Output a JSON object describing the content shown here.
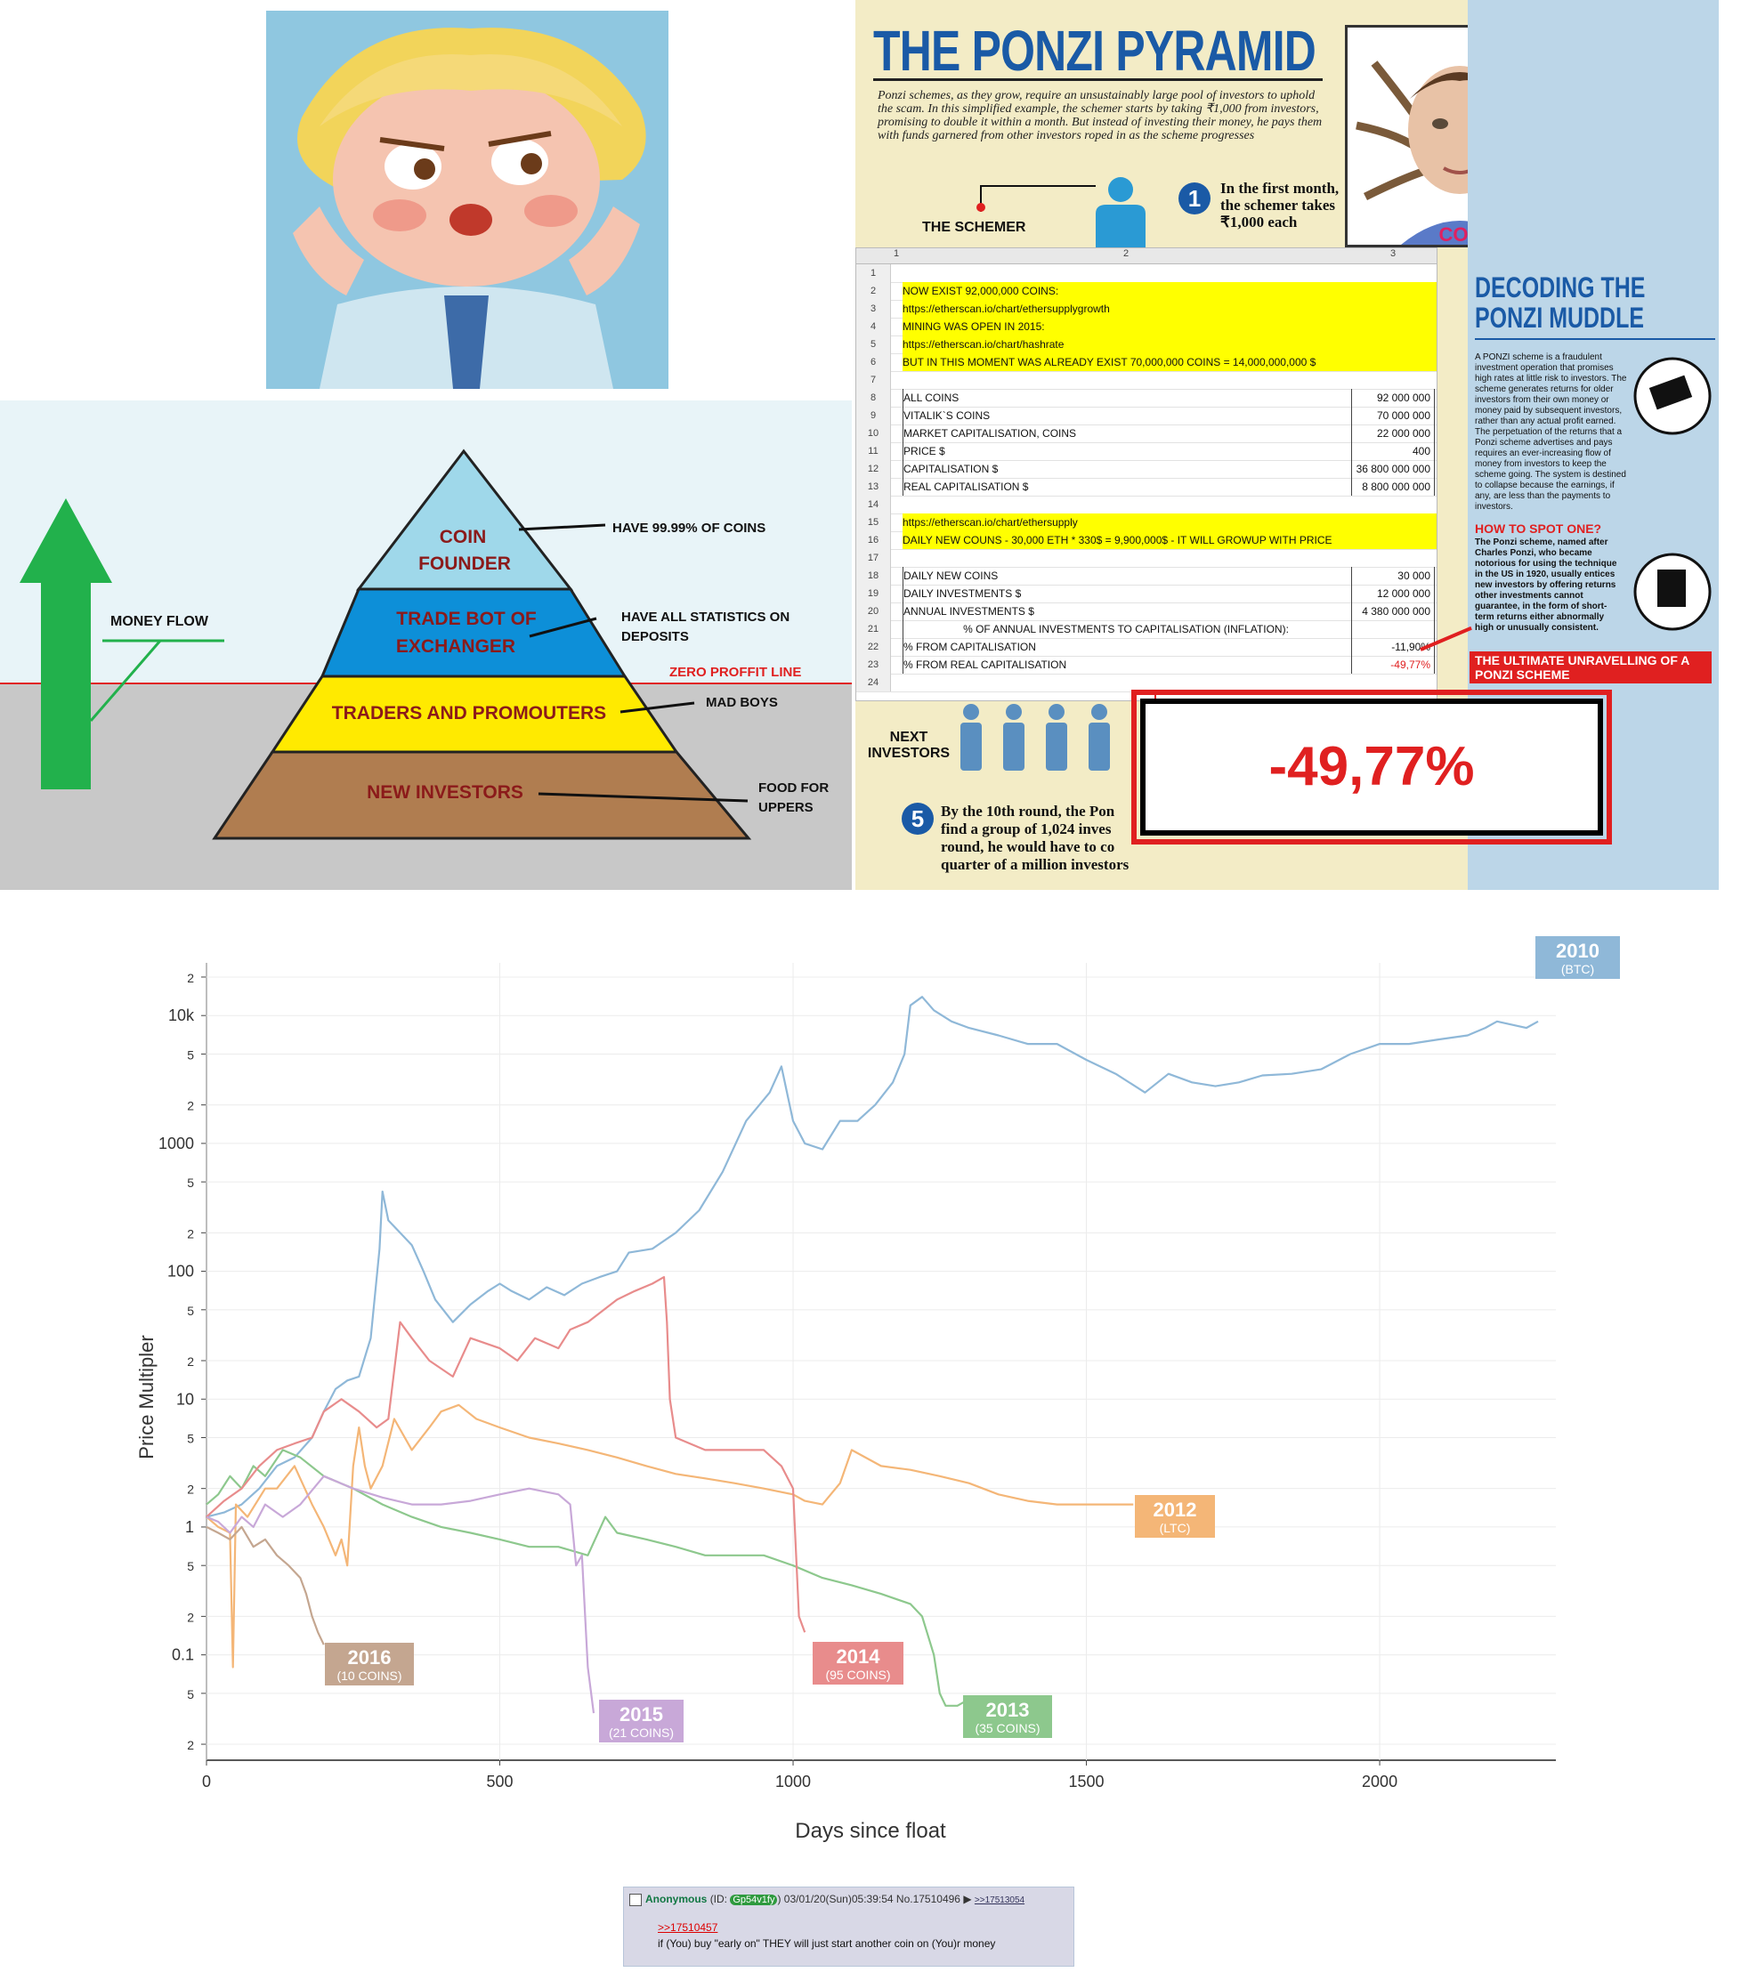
{
  "pyramid": {
    "money_flow": "MONEY FLOW",
    "layers": [
      "COIN FOUNDER",
      "TRADE BOT OF EXCHANGER",
      "TRADERS AND PROMOUTERS",
      "NEW INVESTORS"
    ],
    "notes": [
      "HAVE 99.99% OF COINS",
      "HAVE ALL STATISTICS ON DEPOSITS",
      "MAD BOYS",
      "FOOD FOR UPPERS"
    ],
    "zero_line": "ZERO PROFFIT LINE"
  },
  "infographic": {
    "title": "THE PONZI PYRAMID",
    "intro": "Ponzi schemes, as they grow, require an unsustainably large pool of investors to uphold the scam. In this simplified example, the schemer starts by taking ₹1,000 from investors, promising to double it within a month. But instead of investing their money, he pays them with funds garnered from other investors roped in as the scheme progresses",
    "schemer": "THE SCHEMER",
    "step1": "In the first month, the schemer takes ₹1,000 each",
    "next": "NEXT INVESTORS",
    "step5": "By the 10th round, the Pon find a group of 1,024 inves round, he would have to co quarter of a million investors",
    "side_title": "DECODING THE PONZI MUDDLE",
    "side_text": "A PONZI scheme is a fraudulent investment operation that promises high rates at little risk to investors. The scheme generates returns for older investors from their own money or money paid by subsequent investors, rather than any actual profit earned. The perpetuation of the returns that a Ponzi scheme advertises and pays requires an ever-increasing flow of money from investors to keep the scheme going. The system is destined to collapse because the earnings, if any, are less than the payments to investors.",
    "spot_title": "HOW TO SPOT ONE?",
    "spot_text": "The Ponzi scheme, named after Charles Ponzi, who became notorious for using the technique in the US in 1920, usually entices new investors by offering returns other investments cannot guarantee, in the form of short-term returns either abnormally high or unusually consistent.",
    "unravel_title": "THE ULTIMATE UNRAVELLING OF A PONZI SCHEME",
    "coin_label": "COIN",
    "sheet_cols": [
      "1",
      "2",
      "3"
    ],
    "sheet_rows": [
      {
        "n": "1",
        "t": "",
        "v": ""
      },
      {
        "n": "2",
        "t": "NOW EXIST 92,000,000 COINS:",
        "v": ""
      },
      {
        "n": "3",
        "t": "https://etherscan.io/chart/ethersupplygrowth",
        "v": ""
      },
      {
        "n": "4",
        "t": "MINING WAS OPEN IN 2015:",
        "v": ""
      },
      {
        "n": "5",
        "t": "https://etherscan.io/chart/hashrate",
        "v": ""
      },
      {
        "n": "6",
        "t": "BUT IN THIS MOMENT WAS ALREADY EXIST 70,000,000 COINS = 14,000,000,000 $",
        "v": ""
      },
      {
        "n": "7",
        "t": "",
        "v": ""
      },
      {
        "n": "8",
        "t": "ALL COINS",
        "v": "92 000 000"
      },
      {
        "n": "9",
        "t": "VITALIK`S COINS",
        "v": "70 000 000"
      },
      {
        "n": "10",
        "t": "MARKET CAPITALISATION, COINS",
        "v": "22 000 000"
      },
      {
        "n": "11",
        "t": "PRICE  $",
        "v": "400"
      },
      {
        "n": "12",
        "t": "CAPITALISATION $",
        "v": "36 800 000 000"
      },
      {
        "n": "13",
        "t": "REAL CAPITALISATION $",
        "v": "8 800 000 000"
      },
      {
        "n": "14",
        "t": "",
        "v": ""
      },
      {
        "n": "15",
        "t": "https://etherscan.io/chart/ethersupply",
        "v": ""
      },
      {
        "n": "16",
        "t": "DAILY NEW COUNS - 30,000 ETH * 330$ = 9,900,000$ - IT WILL GROWUP WITH PRICE",
        "v": ""
      },
      {
        "n": "17",
        "t": "",
        "v": ""
      },
      {
        "n": "18",
        "t": "DAILY NEW COINS",
        "v": "30 000"
      },
      {
        "n": "19",
        "t": "DAILY INVESTMENTS $",
        "v": "12 000 000"
      },
      {
        "n": "20",
        "t": "ANNUAL INVESTMENTS $",
        "v": "4 380 000 000"
      },
      {
        "n": "21",
        "t": "% OF ANNUAL INVESTMENTS TO CAPITALISATION (INFLATION):",
        "v": ""
      },
      {
        "n": "22",
        "t": "% FROM CAPITALISATION",
        "v": "-11,90%"
      },
      {
        "n": "23",
        "t": "% FROM REAL CAPITALISATION",
        "v": "-49,77%"
      },
      {
        "n": "24",
        "t": "",
        "v": ""
      }
    ],
    "big_number": "-49,77%"
  },
  "chart_data": {
    "type": "line",
    "xlabel": "Days since float",
    "ylabel": "Price Multipler",
    "xlim": [
      0,
      2280
    ],
    "ylim": [
      0.015,
      25000
    ],
    "y_log": true,
    "x_ticks": [
      "0",
      "500",
      "1000",
      "1500",
      "2000"
    ],
    "y_ticks": [
      {
        "v": 0.02,
        "l": "2"
      },
      {
        "v": 0.05,
        "l": "5"
      },
      {
        "v": 0.1,
        "l": "0.1"
      },
      {
        "v": 0.2,
        "l": "2"
      },
      {
        "v": 0.5,
        "l": "5"
      },
      {
        "v": 1,
        "l": "1"
      },
      {
        "v": 2,
        "l": "2"
      },
      {
        "v": 5,
        "l": "5"
      },
      {
        "v": 10,
        "l": "10"
      },
      {
        "v": 20,
        "l": "2"
      },
      {
        "v": 50,
        "l": "5"
      },
      {
        "v": 100,
        "l": "100"
      },
      {
        "v": 200,
        "l": "2"
      },
      {
        "v": 500,
        "l": "5"
      },
      {
        "v": 1000,
        "l": "1000"
      },
      {
        "v": 2000,
        "l": "2"
      },
      {
        "v": 5000,
        "l": "5"
      },
      {
        "v": 10000,
        "l": "10k"
      },
      {
        "v": 20000,
        "l": "2"
      }
    ],
    "grid": true,
    "series": [
      {
        "name": "2010",
        "sub": "(BTC)",
        "color": "#8fb8d8",
        "x": [
          0,
          30,
          60,
          90,
          120,
          150,
          180,
          200,
          220,
          240,
          260,
          280,
          295,
          300,
          310,
          330,
          350,
          370,
          390,
          420,
          450,
          480,
          500,
          520,
          550,
          580,
          610,
          640,
          670,
          700,
          720,
          760,
          800,
          840,
          880,
          920,
          960,
          980,
          1000,
          1020,
          1050,
          1080,
          1110,
          1140,
          1170,
          1190,
          1200,
          1220,
          1240,
          1270,
          1300,
          1350,
          1400,
          1450,
          1500,
          1550,
          1600,
          1640,
          1680,
          1720,
          1760,
          1800,
          1850,
          1900,
          1950,
          2000,
          2050,
          2100,
          2150,
          2180,
          2200,
          2250,
          2270
        ],
        "y": [
          1.2,
          1.3,
          1.5,
          2,
          3,
          3.5,
          5,
          8,
          12,
          14,
          15,
          30,
          150,
          420,
          250,
          200,
          160,
          100,
          60,
          40,
          55,
          70,
          80,
          70,
          60,
          75,
          65,
          80,
          90,
          100,
          140,
          150,
          200,
          300,
          600,
          1500,
          2500,
          4000,
          1500,
          1000,
          900,
          1500,
          1500,
          2000,
          3000,
          5000,
          12000,
          14000,
          11000,
          9000,
          8000,
          7000,
          6000,
          6000,
          4500,
          3500,
          2500,
          3500,
          3000,
          2800,
          3000,
          3400,
          3500,
          3800,
          5000,
          6000,
          6000,
          6500,
          7000,
          8000,
          9000,
          8000,
          9000
        ]
      },
      {
        "name": "2012",
        "sub": "(LTC)",
        "color": "#f4b677",
        "x": [
          0,
          20,
          40,
          45,
          50,
          70,
          100,
          120,
          150,
          180,
          200,
          220,
          230,
          240,
          250,
          260,
          270,
          280,
          300,
          320,
          350,
          380,
          400,
          430,
          460,
          500,
          550,
          600,
          650,
          700,
          750,
          800,
          850,
          900,
          950,
          1000,
          1020,
          1050,
          1080,
          1100,
          1150,
          1200,
          1250,
          1300,
          1350,
          1400,
          1450,
          1500,
          1550,
          1580
        ],
        "y": [
          1.2,
          1.0,
          0.9,
          0.08,
          1.5,
          1.2,
          2,
          2,
          3,
          1.5,
          1.0,
          0.6,
          0.8,
          0.5,
          3,
          6,
          3,
          2,
          3,
          7,
          4,
          6,
          8,
          9,
          7,
          6,
          5,
          4.5,
          4,
          3.5,
          3,
          2.6,
          2.4,
          2.2,
          2.0,
          1.8,
          1.6,
          1.5,
          2.2,
          4,
          3,
          2.8,
          2.5,
          2.2,
          1.8,
          1.6,
          1.5,
          1.5,
          1.5,
          1.5
        ]
      },
      {
        "name": "2013",
        "sub": "(35 COINS)",
        "color": "#8dc88d",
        "x": [
          0,
          20,
          40,
          60,
          80,
          100,
          130,
          160,
          200,
          250,
          300,
          350,
          400,
          450,
          500,
          550,
          600,
          650,
          680,
          700,
          750,
          800,
          850,
          900,
          950,
          1000,
          1050,
          1100,
          1150,
          1200,
          1220,
          1240,
          1250,
          1260,
          1280,
          1300
        ],
        "y": [
          1.5,
          1.8,
          2.5,
          2,
          3,
          2.5,
          4,
          3.5,
          2.5,
          2,
          1.5,
          1.2,
          1.0,
          0.9,
          0.8,
          0.7,
          0.7,
          0.6,
          1.2,
          0.9,
          0.8,
          0.7,
          0.6,
          0.6,
          0.6,
          0.5,
          0.4,
          0.35,
          0.3,
          0.25,
          0.2,
          0.1,
          0.05,
          0.04,
          0.04,
          0.045
        ]
      },
      {
        "name": "2014",
        "sub": "(95 COINS)",
        "color": "#e88c8c",
        "x": [
          0,
          30,
          60,
          90,
          120,
          150,
          180,
          200,
          230,
          260,
          290,
          310,
          330,
          350,
          380,
          420,
          450,
          500,
          530,
          560,
          600,
          620,
          650,
          700,
          730,
          760,
          780,
          785,
          790,
          800,
          850,
          900,
          950,
          980,
          1000,
          1010,
          1020
        ],
        "y": [
          1.2,
          1.6,
          2,
          3,
          4,
          4.5,
          5,
          8,
          10,
          8,
          6,
          7,
          40,
          30,
          20,
          15,
          30,
          25,
          20,
          30,
          25,
          35,
          40,
          60,
          70,
          80,
          90,
          40,
          10,
          5,
          4,
          4,
          4,
          3,
          2,
          0.2,
          0.15
        ]
      },
      {
        "name": "2015",
        "sub": "(21 COINS)",
        "color": "#c8a8d8",
        "x": [
          0,
          20,
          40,
          60,
          80,
          100,
          130,
          160,
          200,
          250,
          300,
          350,
          400,
          450,
          500,
          550,
          600,
          620,
          630,
          640,
          650,
          660
        ],
        "y": [
          1.2,
          1.1,
          0.9,
          1.2,
          1.0,
          1.5,
          1.2,
          1.5,
          2.5,
          2,
          1.7,
          1.5,
          1.5,
          1.6,
          1.8,
          2,
          1.8,
          1.5,
          0.5,
          0.6,
          0.08,
          0.035
        ]
      },
      {
        "name": "2016",
        "sub": "(10 COINS)",
        "color": "#c4a690",
        "x": [
          0,
          20,
          40,
          60,
          80,
          100,
          120,
          140,
          160,
          170,
          180,
          190,
          200
        ],
        "y": [
          1.0,
          0.9,
          0.8,
          1.0,
          0.7,
          0.8,
          0.6,
          0.5,
          0.4,
          0.3,
          0.2,
          0.15,
          0.12
        ]
      }
    ]
  },
  "post": {
    "name": "Anonymous",
    "id_label": "(ID:",
    "id": "Gp54v1fy",
    "meta": ") 03/01/20(Sun)05:39:54 No.17510496",
    "reply_link": ">>17513054",
    "quote": ">>17510457",
    "text": "if (You) buy \"early on\" THEY will just start another coin on (You)r money"
  }
}
